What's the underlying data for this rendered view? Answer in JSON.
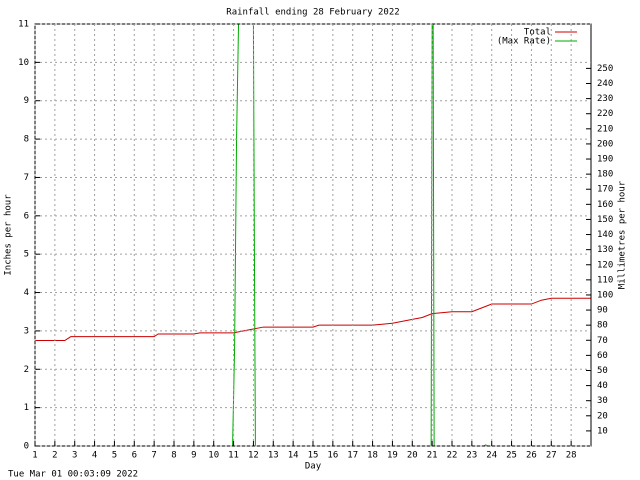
{
  "chart_data": {
    "type": "line",
    "title": "Rainfall ending 28 February 2022",
    "x_label": "Day",
    "y_label": "Inches per hour",
    "y2_label": "Millimetres per hour",
    "footer": "Tue Mar 01 00:03:09 2022",
    "xlim": [
      1,
      29
    ],
    "xticks": [
      1,
      2,
      3,
      4,
      5,
      6,
      7,
      8,
      9,
      10,
      11,
      12,
      13,
      14,
      15,
      16,
      17,
      18,
      19,
      20,
      21,
      22,
      23,
      24,
      25,
      26,
      27,
      28
    ],
    "ylim": [
      0,
      11
    ],
    "yticks": [
      0,
      1,
      2,
      3,
      4,
      5,
      6,
      7,
      8,
      9,
      10,
      11
    ],
    "y2lim": [
      0,
      279.4
    ],
    "y2ticks": [
      10,
      20,
      30,
      40,
      50,
      60,
      70,
      80,
      90,
      100,
      110,
      120,
      130,
      140,
      150,
      160,
      170,
      180,
      190,
      200,
      210,
      220,
      230,
      240,
      250
    ],
    "grid": true,
    "legend": "top-right",
    "series": [
      {
        "name": "Total",
        "color": "#cc0000",
        "x": [
          1,
          2.5,
          2.8,
          7,
          7.2,
          9,
          9.3,
          11,
          11.5,
          12,
          12.5,
          15,
          15.3,
          18,
          19,
          20,
          20.5,
          21,
          22,
          23,
          23.5,
          24,
          26,
          26.5,
          27,
          29
        ],
        "values": [
          2.75,
          2.75,
          2.85,
          2.85,
          2.92,
          2.92,
          2.95,
          2.95,
          3.0,
          3.05,
          3.1,
          3.1,
          3.15,
          3.15,
          3.2,
          3.3,
          3.35,
          3.45,
          3.5,
          3.5,
          3.6,
          3.7,
          3.7,
          3.8,
          3.85,
          3.85
        ]
      },
      {
        "name": "(Max Rate)",
        "color": "#00aa00",
        "x": [
          10.95,
          11.05,
          11.15,
          11.25,
          null,
          12.0,
          12.05,
          12.1,
          null,
          20.95,
          21.0,
          21.05,
          21.1,
          null,
          23.6,
          23.7,
          23.8
        ],
        "values": [
          0,
          2.5,
          8,
          11,
          null,
          11,
          5,
          0,
          null,
          0,
          11,
          11,
          0,
          null,
          0,
          0.03,
          0
        ]
      }
    ]
  }
}
